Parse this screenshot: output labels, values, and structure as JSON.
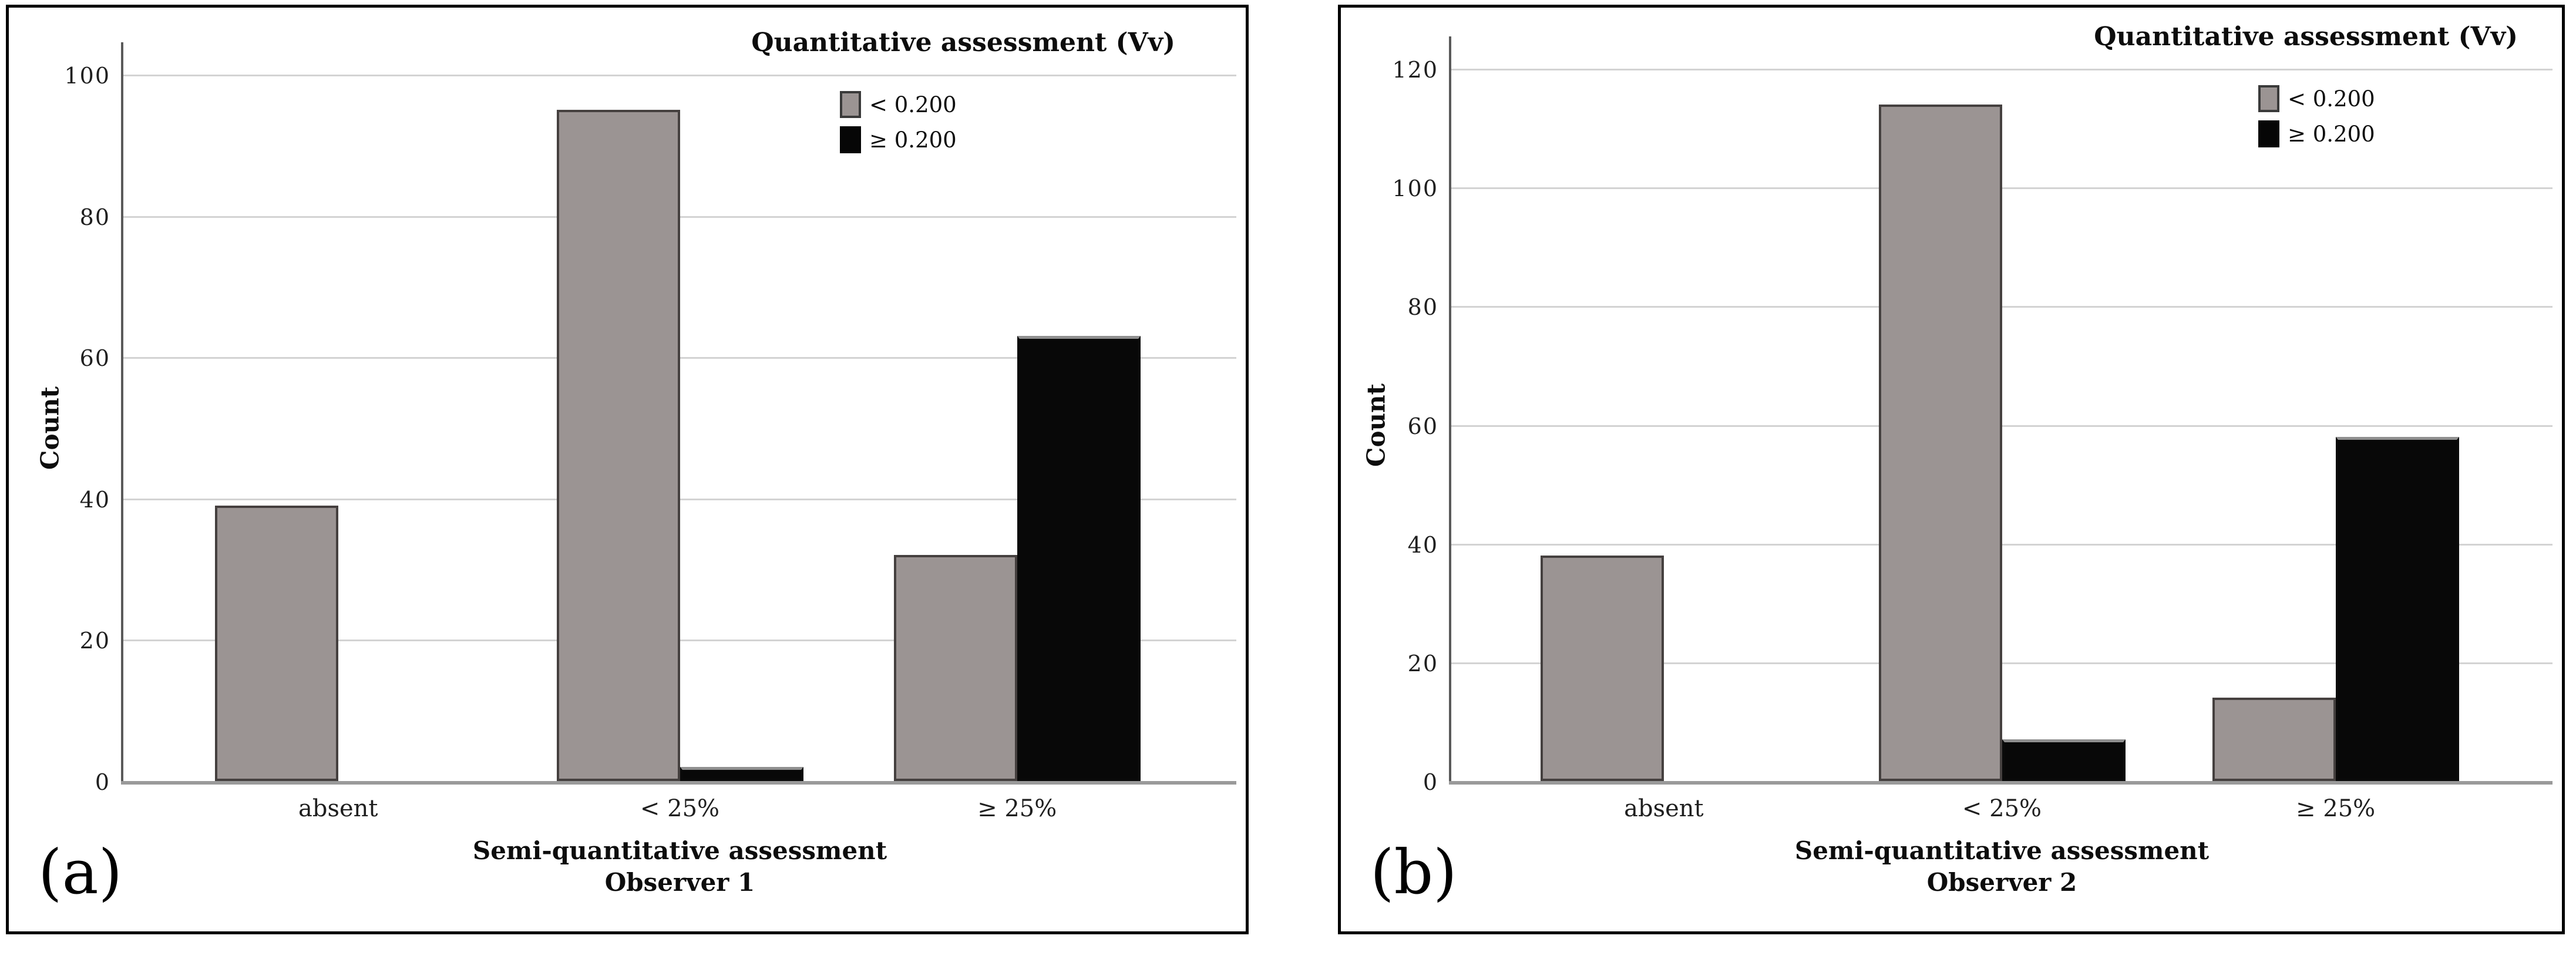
{
  "figure": {
    "panels": [
      {
        "panel_label": "(a)"
      },
      {
        "panel_label": "(b)"
      }
    ]
  },
  "chart_data": [
    {
      "type": "bar",
      "title": "",
      "legend_title": "Quantitative assessment (Vv)",
      "legend_position": "top-right-inside",
      "categories": [
        "absent",
        "< 25%",
        "≥ 25%"
      ],
      "series": [
        {
          "name": "< 0.200",
          "color": "#9b9493",
          "values": [
            39,
            95,
            32
          ]
        },
        {
          "name": "≥ 0.200",
          "color": "#080808",
          "values": [
            0,
            2,
            63
          ]
        }
      ],
      "ylabel": "Count",
      "xlabel_line1": "Semi-quantitative assessment",
      "xlabel_line2": "Observer 1",
      "yticks": [
        0,
        20,
        40,
        60,
        80,
        100
      ],
      "ylim": [
        0,
        100
      ],
      "grid": true,
      "colors": {
        "gray_fill": "#9b9493",
        "black_fill": "#080808",
        "gridline": "#d3d3d3",
        "axis": "#5a5a5a"
      }
    },
    {
      "type": "bar",
      "title": "",
      "legend_title": "Quantitative assessment (Vv)",
      "legend_position": "top-right-inside",
      "categories": [
        "absent",
        "< 25%",
        "≥ 25%"
      ],
      "series": [
        {
          "name": "< 0.200",
          "color": "#9b9493",
          "values": [
            38,
            114,
            14
          ]
        },
        {
          "name": "≥ 0.200",
          "color": "#080808",
          "values": [
            0,
            7,
            58
          ]
        }
      ],
      "ylabel": "Count",
      "xlabel_line1": "Semi-quantitative assessment",
      "xlabel_line2": "Observer 2",
      "yticks": [
        0,
        20,
        40,
        60,
        80,
        100,
        120
      ],
      "ylim": [
        0,
        120
      ],
      "grid": true,
      "colors": {
        "gray_fill": "#9b9493",
        "black_fill": "#080808",
        "gridline": "#d3d3d3",
        "axis": "#5a5a5a"
      }
    }
  ]
}
